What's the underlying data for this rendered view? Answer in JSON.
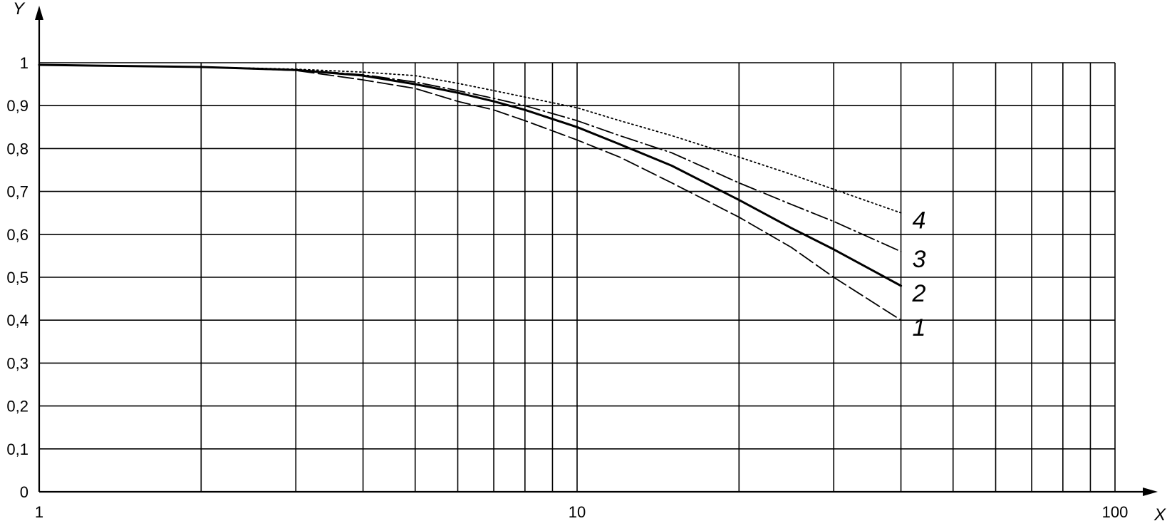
{
  "chart_data": {
    "type": "line",
    "title": "",
    "xlabel": "X",
    "ylabel": "Y",
    "xscale": "log",
    "xlim": [
      1,
      100
    ],
    "ylim": [
      0,
      1
    ],
    "grid": true,
    "legend": "none",
    "x_tick_labels": [
      {
        "value": 1,
        "label": "1"
      },
      {
        "value": 10,
        "label": "10"
      },
      {
        "value": 100,
        "label": "100"
      }
    ],
    "x_gridlines": [
      2,
      3,
      4,
      5,
      6,
      7,
      8,
      9,
      10,
      20,
      30,
      40,
      50,
      60,
      70,
      80,
      90,
      100
    ],
    "y_tick_labels": [
      {
        "value": 0,
        "label": "0"
      },
      {
        "value": 0.1,
        "label": "0,1"
      },
      {
        "value": 0.2,
        "label": "0,2"
      },
      {
        "value": 0.3,
        "label": "0,3"
      },
      {
        "value": 0.4,
        "label": "0,4"
      },
      {
        "value": 0.5,
        "label": "0,5"
      },
      {
        "value": 0.6,
        "label": "0,6"
      },
      {
        "value": 0.7,
        "label": "0,7"
      },
      {
        "value": 0.8,
        "label": "0,8"
      },
      {
        "value": 0.9,
        "label": "0,9"
      },
      {
        "value": 1,
        "label": "1"
      }
    ],
    "series": [
      {
        "label": "1",
        "style": "long-dash",
        "x": [
          1,
          2,
          3,
          4,
          5,
          6,
          7,
          8,
          10,
          12,
          15,
          20,
          25,
          30,
          40
        ],
        "y": [
          0.995,
          0.99,
          0.982,
          0.96,
          0.94,
          0.91,
          0.89,
          0.865,
          0.82,
          0.78,
          0.72,
          0.64,
          0.57,
          0.5,
          0.4
        ]
      },
      {
        "label": "2",
        "style": "solid",
        "x": [
          1,
          2,
          3,
          4,
          5,
          6,
          7,
          8,
          10,
          12,
          15,
          20,
          25,
          30,
          40
        ],
        "y": [
          0.995,
          0.99,
          0.983,
          0.97,
          0.95,
          0.93,
          0.91,
          0.89,
          0.85,
          0.81,
          0.76,
          0.68,
          0.615,
          0.565,
          0.48
        ]
      },
      {
        "label": "3",
        "style": "dash-dot",
        "x": [
          1,
          2,
          3,
          4,
          5,
          6,
          7,
          8,
          10,
          12,
          15,
          20,
          25,
          30,
          40
        ],
        "y": [
          0.995,
          0.99,
          0.984,
          0.972,
          0.955,
          0.935,
          0.917,
          0.9,
          0.865,
          0.83,
          0.79,
          0.72,
          0.67,
          0.63,
          0.56
        ]
      },
      {
        "label": "4",
        "style": "dotted",
        "x": [
          1,
          2,
          3,
          4,
          5,
          6,
          7,
          8,
          10,
          12,
          15,
          20,
          25,
          30,
          40
        ],
        "y": [
          0.995,
          0.99,
          0.985,
          0.978,
          0.97,
          0.952,
          0.935,
          0.92,
          0.895,
          0.865,
          0.83,
          0.78,
          0.74,
          0.705,
          0.65
        ]
      }
    ]
  }
}
